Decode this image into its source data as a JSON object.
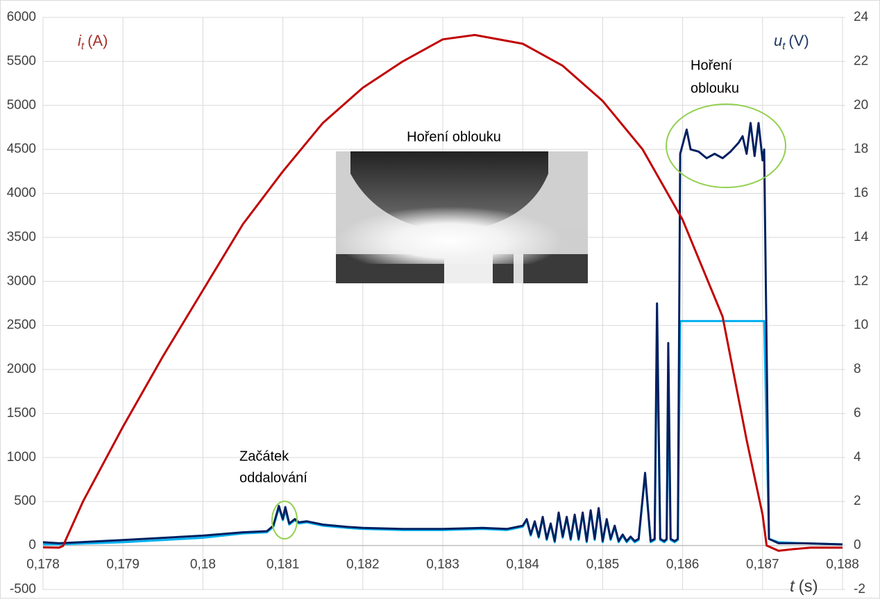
{
  "chart_data": {
    "type": "line",
    "y_label": {
      "symbol": "i",
      "subscript": "t",
      "unit": "(A)"
    },
    "y2_label": {
      "symbol": "u",
      "subscript": "t",
      "unit": "(V)"
    },
    "x_label": {
      "symbol": "t",
      "unit": "(s)"
    },
    "annotations": {
      "arc_top": [
        "Hoření",
        "oblouku"
      ],
      "photo_caption": "Hoření oblouku",
      "start": [
        "Začátek",
        "oddalování"
      ]
    },
    "xlim": [
      0.178,
      0.188
    ],
    "xticks": [
      {
        "value": 0.178,
        "label": "0,178"
      },
      {
        "value": 0.179,
        "label": "0,179"
      },
      {
        "value": 0.18,
        "label": "0,18"
      },
      {
        "value": 0.181,
        "label": "0,181"
      },
      {
        "value": 0.182,
        "label": "0,182"
      },
      {
        "value": 0.183,
        "label": "0,183"
      },
      {
        "value": 0.184,
        "label": "0,184"
      },
      {
        "value": 0.185,
        "label": "0,185"
      },
      {
        "value": 0.186,
        "label": "0,186"
      },
      {
        "value": 0.187,
        "label": "0,187"
      },
      {
        "value": 0.188,
        "label": "0,188"
      }
    ],
    "ylim": [
      -500,
      6000
    ],
    "yticks": [
      -500,
      0,
      500,
      1000,
      1500,
      2000,
      2500,
      3000,
      3500,
      4000,
      4500,
      5000,
      5500,
      6000
    ],
    "y2lim": [
      -2,
      24
    ],
    "y2ticks": [
      -2,
      0,
      2,
      4,
      6,
      8,
      10,
      12,
      14,
      16,
      18,
      20,
      22,
      24
    ],
    "grid": true,
    "series": [
      {
        "color": "#c00000",
        "x": [
          0.178,
          0.1782,
          0.17825,
          0.1785,
          0.179,
          0.1795,
          0.18,
          0.1805,
          0.181,
          0.1815,
          0.182,
          0.1825,
          0.183,
          0.1834,
          0.184,
          0.1845,
          0.185,
          0.1855,
          0.186,
          0.1865,
          0.1868,
          0.187,
          0.18705,
          0.1872,
          0.1874,
          0.1876,
          0.188
        ],
        "values": [
          -20,
          -25,
          -5,
          500,
          1350,
          2150,
          2900,
          3650,
          4250,
          4800,
          5200,
          5500,
          5750,
          5800,
          5700,
          5450,
          5050,
          4500,
          3700,
          2600,
          1200,
          350,
          0,
          -60,
          -40,
          -25,
          -25
        ]
      },
      {
        "color": "#002060",
        "axis": "y2",
        "x": [
          0.178,
          0.1782,
          0.179,
          0.18,
          0.1805,
          0.1808,
          0.18088,
          0.18095,
          0.181,
          0.18103,
          0.18108,
          0.18115,
          0.1812,
          0.1813,
          0.1815,
          0.1818,
          0.182,
          0.1825,
          0.183,
          0.1835,
          0.1838,
          0.184,
          0.18405,
          0.1841,
          0.18415,
          0.1842,
          0.18425,
          0.1843,
          0.18435,
          0.1844,
          0.18445,
          0.1845,
          0.18455,
          0.1846,
          0.18465,
          0.1847,
          0.18475,
          0.1848,
          0.18485,
          0.1849,
          0.18495,
          0.185,
          0.18505,
          0.1851,
          0.18515,
          0.1852,
          0.18525,
          0.1853,
          0.18535,
          0.1854,
          0.18545,
          0.18553,
          0.1856,
          0.18565,
          0.18568,
          0.18572,
          0.18577,
          0.1858,
          0.18582,
          0.18585,
          0.1859,
          0.18594,
          0.18597,
          0.18605,
          0.1861,
          0.1862,
          0.1863,
          0.1864,
          0.1865,
          0.1866,
          0.1867,
          0.18675,
          0.1868,
          0.18685,
          0.1869,
          0.18695,
          0.187,
          0.18702,
          0.18708,
          0.1872,
          0.1875,
          0.188
        ],
        "values": [
          0.15,
          0.1,
          0.25,
          0.45,
          0.6,
          0.65,
          0.9,
          1.8,
          1.2,
          1.75,
          1.0,
          1.2,
          1.05,
          1.1,
          0.95,
          0.85,
          0.8,
          0.75,
          0.75,
          0.8,
          0.75,
          0.9,
          1.2,
          0.5,
          1.1,
          0.4,
          1.3,
          0.3,
          1.0,
          0.2,
          1.5,
          0.4,
          1.3,
          0.3,
          1.4,
          0.3,
          1.5,
          0.2,
          1.6,
          0.3,
          1.7,
          0.2,
          1.2,
          0.3,
          0.9,
          0.2,
          0.5,
          0.2,
          0.4,
          0.2,
          0.3,
          3.3,
          0.2,
          0.3,
          11.0,
          0.3,
          0.2,
          0.3,
          9.2,
          0.3,
          0.2,
          0.3,
          17.8,
          18.9,
          18.0,
          17.9,
          17.6,
          17.8,
          17.6,
          17.9,
          18.3,
          18.6,
          17.8,
          19.2,
          17.7,
          19.2,
          17.5,
          18.0,
          0.3,
          0.1,
          0.1,
          0.05
        ]
      },
      {
        "color": "#00b0f0",
        "axis": "y2",
        "x": [
          0.178,
          0.1782,
          0.179,
          0.18,
          0.1805,
          0.1808,
          0.18088,
          0.18095,
          0.181,
          0.18103,
          0.18108,
          0.18115,
          0.1812,
          0.1813,
          0.1815,
          0.1818,
          0.182,
          0.1825,
          0.183,
          0.1835,
          0.1838,
          0.184,
          0.18405,
          0.1841,
          0.18415,
          0.1842,
          0.18425,
          0.1843,
          0.18435,
          0.1844,
          0.18445,
          0.1845,
          0.18455,
          0.1846,
          0.18465,
          0.1847,
          0.18475,
          0.1848,
          0.18485,
          0.1849,
          0.18495,
          0.185,
          0.18505,
          0.1851,
          0.18515,
          0.1852,
          0.18525,
          0.1853,
          0.18535,
          0.1854,
          0.18545,
          0.18553,
          0.1856,
          0.18565,
          0.18568,
          0.18572,
          0.18577,
          0.1858,
          0.18582,
          0.18585,
          0.1859,
          0.18594,
          0.18597,
          0.18605,
          0.1861,
          0.1862,
          0.1863,
          0.1864,
          0.1865,
          0.1866,
          0.1867,
          0.18675,
          0.1868,
          0.18685,
          0.1869,
          0.18695,
          0.187,
          0.18702,
          0.18708,
          0.1872,
          0.1875,
          0.188
        ],
        "values": [
          0.05,
          0.05,
          0.15,
          0.35,
          0.55,
          0.6,
          0.85,
          1.7,
          1.15,
          1.6,
          0.95,
          1.15,
          1.0,
          1.05,
          0.9,
          0.8,
          0.75,
          0.7,
          0.7,
          0.75,
          0.7,
          0.85,
          1.15,
          0.45,
          1.05,
          0.35,
          1.25,
          0.25,
          0.95,
          0.15,
          1.45,
          0.35,
          1.25,
          0.25,
          1.35,
          0.25,
          1.45,
          0.15,
          1.55,
          0.25,
          1.65,
          0.15,
          1.15,
          0.25,
          0.85,
          0.15,
          0.45,
          0.15,
          0.35,
          0.15,
          0.25,
          3.2,
          0.15,
          0.25,
          9.8,
          0.25,
          0.15,
          0.25,
          7.0,
          0.25,
          0.15,
          0.25,
          10.2,
          10.2,
          10.2,
          10.2,
          10.2,
          10.2,
          10.2,
          10.2,
          10.2,
          10.2,
          10.2,
          10.2,
          10.2,
          10.2,
          10.2,
          10.2,
          0.3,
          0.15,
          0.1,
          0.05
        ]
      }
    ]
  }
}
